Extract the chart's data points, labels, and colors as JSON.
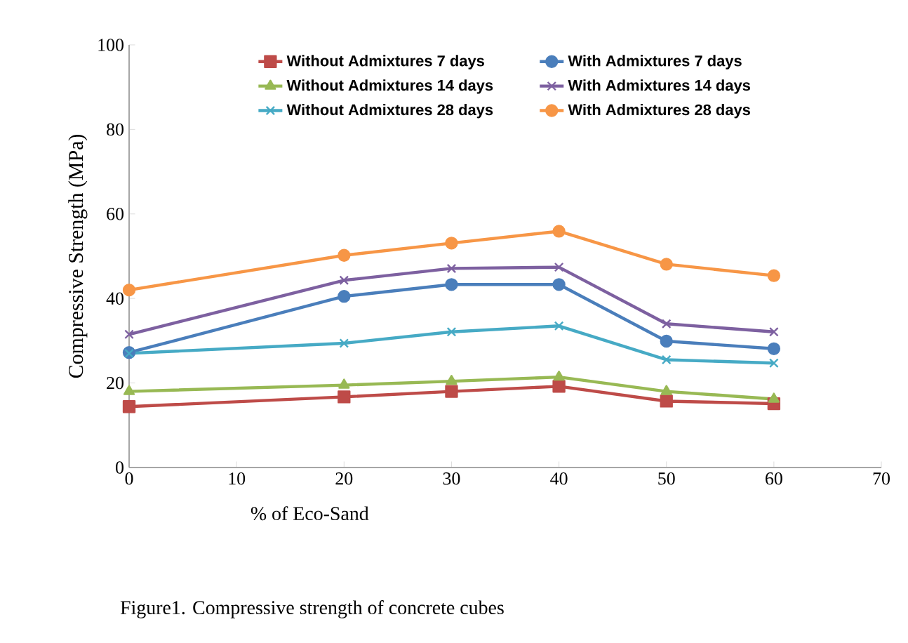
{
  "chart_data": {
    "type": "line",
    "xlabel": "% of Eco-Sand",
    "ylabel": "Compressive Strength (MPa)",
    "annotations": [
      "Figure1. Compressive strength of concrete cubes"
    ],
    "x": [
      0,
      20,
      30,
      40,
      50,
      60
    ],
    "xlim": [
      0,
      70
    ],
    "xticks": [
      0,
      10,
      20,
      30,
      40,
      50,
      60,
      70
    ],
    "ylim": [
      0,
      100
    ],
    "yticks": [
      0,
      20,
      40,
      60,
      80,
      100
    ],
    "legend": "top",
    "grid": false,
    "series": [
      {
        "name": "Without Admixtures 7 days",
        "color": "#be4b48",
        "marker": "square",
        "values": [
          14.4,
          16.7,
          18.0,
          19.2,
          15.7,
          15.1
        ]
      },
      {
        "name": "With Admixtures 7 days",
        "color": "#4a7ebb",
        "marker": "circle",
        "values": [
          27.2,
          40.5,
          43.3,
          43.3,
          29.9,
          28.1
        ]
      },
      {
        "name": "Without Admixtures 14 days",
        "color": "#98b954",
        "marker": "triangle",
        "values": [
          18.0,
          19.5,
          20.4,
          21.4,
          18.0,
          16.2
        ]
      },
      {
        "name": "With Admixtures 14 days",
        "color": "#7d60a0",
        "marker": "cross",
        "values": [
          31.5,
          44.3,
          47.1,
          47.4,
          34.0,
          32.1
        ]
      },
      {
        "name": "Without Admixtures 28 days",
        "color": "#46aac5",
        "marker": "cross",
        "values": [
          27.0,
          29.4,
          32.1,
          33.5,
          25.5,
          24.7
        ]
      },
      {
        "name": "With Admixtures 28 days",
        "color": "#f79646",
        "marker": "circle",
        "values": [
          42.0,
          50.2,
          53.1,
          55.9,
          48.1,
          45.4
        ]
      }
    ]
  }
}
